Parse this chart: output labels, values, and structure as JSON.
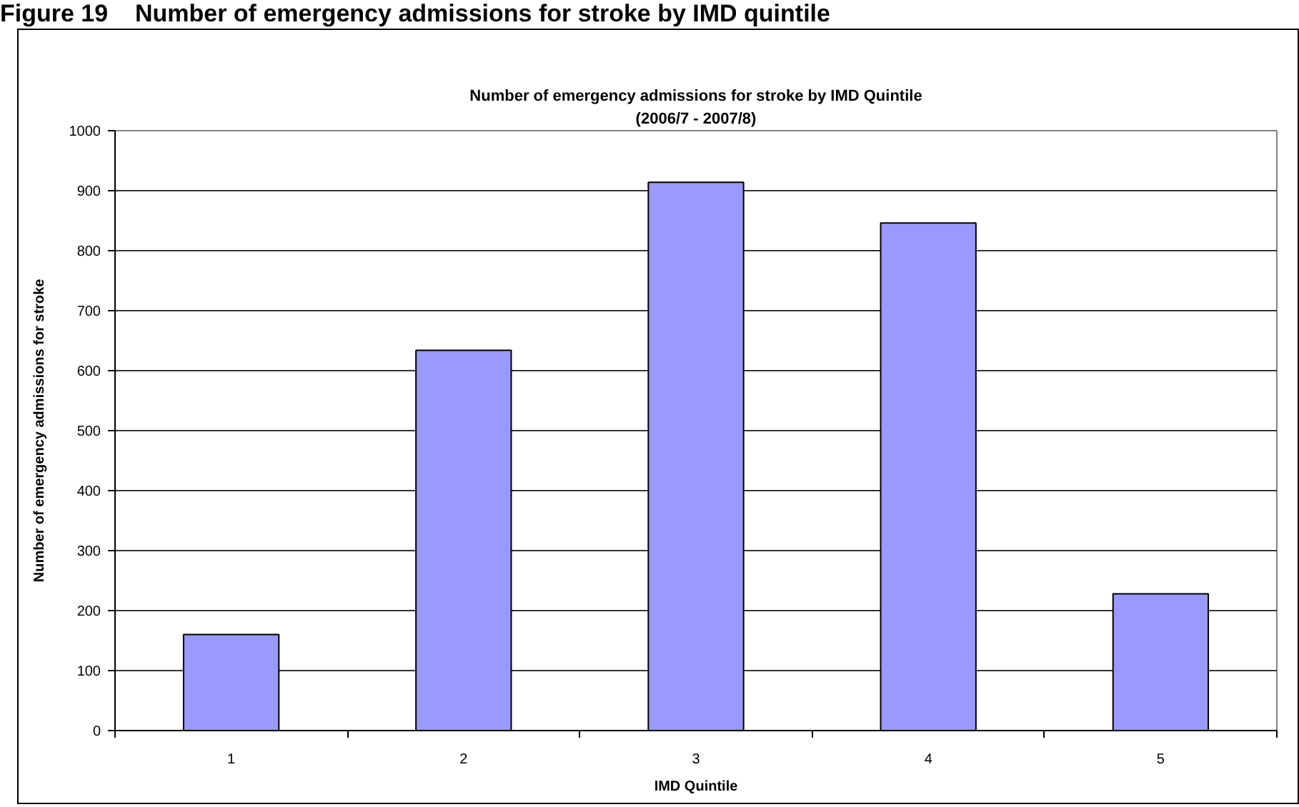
{
  "chart_data": {
    "type": "bar",
    "title": "Number of emergency admissions for stroke by IMD Quintile",
    "subtitle": "(2006/7 - 2007/8)",
    "xlabel": "IMD Quintile",
    "ylabel": "Number of emergency admissions for stroke",
    "categories": [
      "1",
      "2",
      "3",
      "4",
      "5"
    ],
    "values": [
      160,
      634,
      914,
      846,
      228
    ],
    "color": "#9999ff",
    "ylim": [
      0,
      1000
    ],
    "yticks": [
      0,
      100,
      200,
      300,
      400,
      500,
      600,
      700,
      800,
      900,
      1000
    ],
    "grid": "y",
    "annotations": [
      "Figure 19    Number of emergency admissions for stroke by IMD quintile"
    ]
  }
}
